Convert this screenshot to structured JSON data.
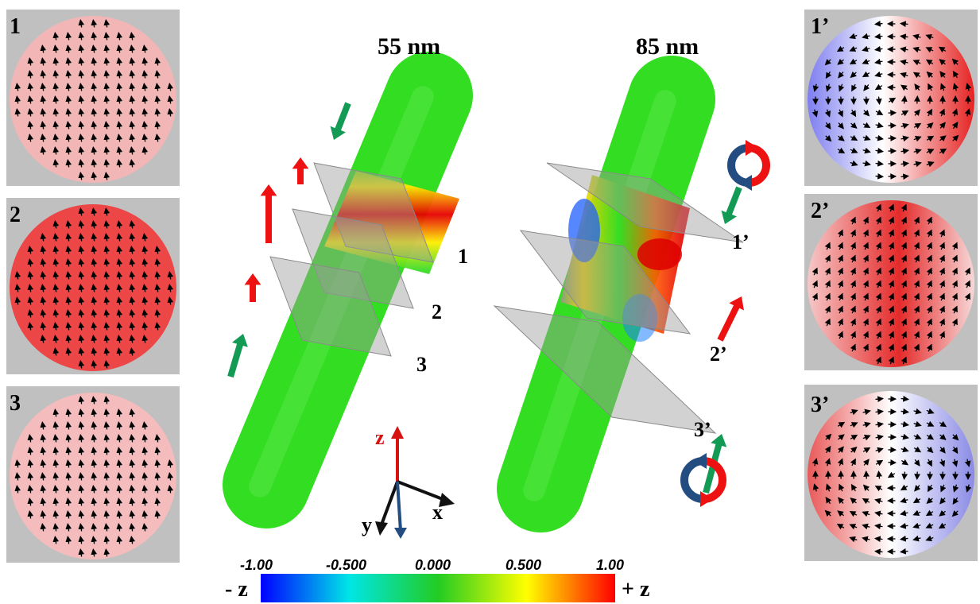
{
  "panels_left": [
    {
      "label": "1",
      "tint": "#f3b6b6",
      "pattern": "up"
    },
    {
      "label": "2",
      "tint": "#ec4646",
      "pattern": "up"
    },
    {
      "label": "3",
      "tint": "#f4bcbc",
      "pattern": "up"
    }
  ],
  "panels_right": [
    {
      "label": "1’",
      "pattern": "vortex-ccw"
    },
    {
      "label": "2’",
      "pattern": "diag"
    },
    {
      "label": "3’",
      "pattern": "vortex-cw"
    }
  ],
  "rods": [
    {
      "title": "55 nm",
      "planes": [
        "1",
        "2",
        "3"
      ]
    },
    {
      "title": "85 nm",
      "planes": [
        "1’",
        "2’",
        "3’"
      ]
    }
  ],
  "axes": {
    "z": "z",
    "x": "x",
    "y": "y"
  },
  "colorbar": {
    "ticks": [
      "-1.00",
      "-0.500",
      "0.000",
      "0.500",
      "1.00"
    ],
    "left_label": "- z",
    "right_label": "+ z",
    "colors": [
      "#0000ff",
      "#00e6e6",
      "#22cc22",
      "#ffff00",
      "#ff0000"
    ]
  },
  "colors": {
    "red_arrow": "#ee1111",
    "green_arrow": "#139a55",
    "blue_curl": "#234c80",
    "rod_green": "#33dd22"
  }
}
